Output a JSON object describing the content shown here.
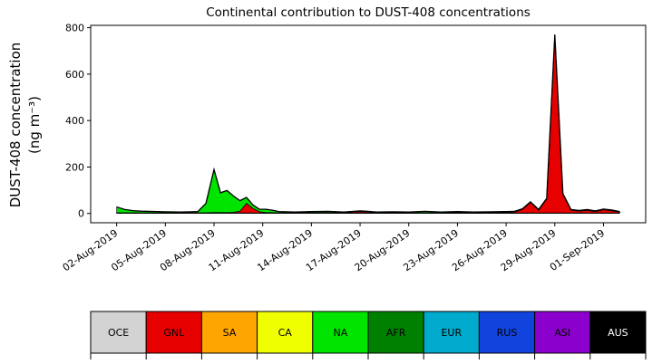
{
  "chart_data": {
    "type": "area",
    "stacked": true,
    "title": "Continental contribution to DUST-408 concentrations",
    "xlabel": "",
    "ylabel": "DUST-408 concentration (ng m⁻³)",
    "ylabel_lines": [
      "DUST-408 concentration",
      "(ng m⁻³)"
    ],
    "x_unit": "days since 02-Aug-2019",
    "xlim": [
      -1.6,
      32.6
    ],
    "ylim": [
      -40,
      810
    ],
    "yticks": [
      0,
      200,
      400,
      600,
      800
    ],
    "xticks": {
      "positions": [
        0,
        3,
        6,
        9,
        12,
        15,
        18,
        21,
        24,
        27,
        30
      ],
      "labels": [
        "02-Aug-2019",
        "05-Aug-2019",
        "08-Aug-2019",
        "11-Aug-2019",
        "14-Aug-2019",
        "17-Aug-2019",
        "20-Aug-2019",
        "23-Aug-2019",
        "26-Aug-2019",
        "29-Aug-2019",
        "01-Sep-2019"
      ]
    },
    "grid": false,
    "legend_position": "bottom-bar",
    "outline_color": "#000000",
    "x": [
      0,
      0.5,
      1,
      1.5,
      2,
      3,
      4,
      5,
      5.5,
      6,
      6.4,
      6.8,
      7.2,
      7.6,
      8,
      8.4,
      8.8,
      9.2,
      9.6,
      10,
      10.5,
      11,
      12,
      13,
      14,
      15,
      15.5,
      16,
      17,
      18,
      19,
      20,
      21,
      22,
      23,
      24,
      24.5,
      25,
      25.5,
      26,
      26.5,
      27,
      27.5,
      28,
      28.5,
      29,
      29.5,
      30,
      30.5,
      31
    ],
    "series": [
      {
        "name": "OCE",
        "color": "#d3d3d3",
        "label_color": "#000000",
        "values": 2
      },
      {
        "name": "GNL",
        "color": "#e60000",
        "label_color": "#000000",
        "values": [
          1,
          1,
          1,
          1,
          1,
          1,
          1,
          1,
          1,
          2,
          2,
          2,
          3,
          8,
          42,
          20,
          6,
          2,
          2,
          1,
          1,
          1,
          2,
          2,
          1,
          6,
          4,
          1,
          2,
          1,
          1,
          1,
          2,
          1,
          2,
          3,
          4,
          15,
          45,
          12,
          60,
          765,
          80,
          12,
          8,
          12,
          6,
          14,
          10,
          4
        ]
      },
      {
        "name": "SA",
        "color": "#ffa500",
        "label_color": "#000000",
        "values": 0
      },
      {
        "name": "CA",
        "color": "#f0ff00",
        "label_color": "#000000",
        "values": 0
      },
      {
        "name": "NA",
        "color": "#00e400",
        "label_color": "#000000",
        "values": [
          25,
          14,
          9,
          7,
          6,
          4,
          3,
          5,
          40,
          185,
          85,
          95,
          70,
          45,
          25,
          15,
          10,
          14,
          10,
          5,
          4,
          3,
          4,
          5,
          3,
          3,
          3,
          3,
          3,
          3,
          6,
          3,
          4,
          3,
          3,
          3,
          3,
          3,
          3,
          3,
          3,
          3,
          3,
          3,
          3,
          3,
          3,
          3,
          3,
          2
        ]
      },
      {
        "name": "AFR",
        "color": "#008000",
        "label_color": "#000000",
        "values": 0
      },
      {
        "name": "EUR",
        "color": "#00aacc",
        "label_color": "#000000",
        "values": 0
      },
      {
        "name": "RUS",
        "color": "#1144dd",
        "label_color": "#000000",
        "values": 0
      },
      {
        "name": "ASI",
        "color": "#8b00cc",
        "label_color": "#000000",
        "values": 0
      },
      {
        "name": "AUS",
        "color": "#000000",
        "label_color": "#ffffff",
        "values": 0
      }
    ]
  }
}
